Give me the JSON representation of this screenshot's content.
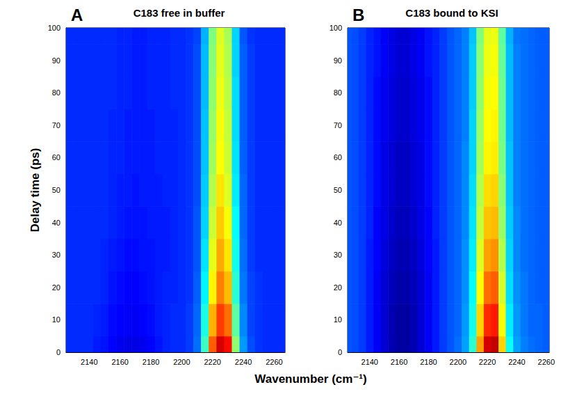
{
  "chart_data": [
    {
      "type": "heatmap",
      "title": "C183 free in buffer",
      "annotation": "A",
      "x_label": "Wavenumber (cm⁻¹)",
      "y_label": "Delay time (ps)",
      "xlim": [
        2125,
        2267
      ],
      "xticks": [
        2140,
        2160,
        2180,
        2200,
        2220,
        2240,
        2260
      ],
      "ylim": [
        0,
        100
      ],
      "yticks": [
        0,
        10,
        20,
        30,
        40,
        50,
        60,
        70,
        80,
        90,
        100
      ],
      "zlim": [
        -0.2,
        1
      ],
      "cells": {
        "x": [
          2125,
          2130,
          2135,
          2140,
          2145,
          2150,
          2155,
          2160,
          2165,
          2170,
          2175,
          2180,
          2185,
          2190,
          2195,
          2200,
          2205,
          2210,
          2215,
          2220,
          2225,
          2230,
          2235,
          2240,
          2245,
          2250,
          2255,
          2260,
          2265
        ],
        "y": [
          0,
          10,
          20,
          30,
          40,
          50,
          60,
          70,
          80,
          90,
          100
        ],
        "z": [
          [
            0,
            0,
            0,
            0,
            -0.02,
            -0.03,
            -0.05,
            -0.07,
            -0.08,
            -0.08,
            -0.07,
            -0.05,
            -0.03,
            -0.01,
            0,
            0,
            0.02,
            0.08,
            0.32,
            0.74,
            0.9,
            0.84,
            0.42,
            0.13,
            0.04,
            0.01,
            0,
            0,
            0
          ],
          [
            0,
            0,
            0,
            0,
            -0.01,
            -0.02,
            -0.04,
            -0.05,
            -0.06,
            -0.06,
            -0.05,
            -0.04,
            -0.02,
            -0.01,
            0,
            0,
            0.02,
            0.07,
            0.28,
            0.64,
            0.78,
            0.72,
            0.36,
            0.11,
            0.03,
            0.01,
            0,
            0,
            0
          ],
          [
            0,
            0,
            0,
            0,
            0,
            -0.01,
            -0.03,
            -0.04,
            -0.05,
            -0.05,
            -0.04,
            -0.03,
            -0.02,
            -0.01,
            -0.01,
            0,
            0.01,
            0.06,
            0.24,
            0.56,
            0.7,
            0.63,
            0.3,
            0.09,
            0.03,
            0.01,
            0,
            0,
            0
          ],
          [
            0,
            0,
            0,
            0,
            0,
            -0.01,
            -0.02,
            -0.03,
            -0.04,
            -0.04,
            -0.03,
            -0.03,
            -0.02,
            -0.02,
            -0.01,
            0,
            0.01,
            0.05,
            0.22,
            0.52,
            0.65,
            0.58,
            0.27,
            0.08,
            0.02,
            0,
            0,
            0,
            0
          ],
          [
            0,
            0,
            0,
            0,
            0,
            0,
            -0.01,
            -0.02,
            -0.03,
            -0.03,
            -0.03,
            -0.02,
            -0.02,
            -0.02,
            -0.01,
            0,
            0.01,
            0.05,
            0.2,
            0.49,
            0.61,
            0.54,
            0.25,
            0.07,
            0.02,
            0,
            0,
            0,
            0
          ],
          [
            0,
            0,
            0,
            0,
            0,
            0,
            -0.01,
            -0.02,
            -0.02,
            -0.03,
            -0.02,
            -0.02,
            -0.02,
            -0.01,
            -0.01,
            0,
            0.01,
            0.04,
            0.19,
            0.46,
            0.58,
            0.51,
            0.23,
            0.07,
            0.02,
            0,
            0,
            0,
            0
          ],
          [
            0,
            0,
            0,
            0,
            0,
            0,
            -0.01,
            -0.01,
            -0.02,
            -0.02,
            -0.02,
            -0.02,
            -0.01,
            -0.01,
            -0.01,
            0,
            0.01,
            0.04,
            0.18,
            0.44,
            0.55,
            0.49,
            0.22,
            0.06,
            0.02,
            0,
            0,
            0,
            0
          ],
          [
            0,
            0,
            0,
            0,
            0,
            0,
            -0.01,
            -0.01,
            -0.02,
            -0.02,
            -0.02,
            -0.02,
            -0.01,
            -0.01,
            -0.01,
            0,
            0.01,
            0.04,
            0.18,
            0.43,
            0.54,
            0.48,
            0.21,
            0.06,
            0.02,
            0,
            0,
            0,
            0
          ],
          [
            0,
            0,
            0,
            0,
            0,
            0,
            0,
            -0.01,
            -0.01,
            -0.02,
            -0.02,
            -0.01,
            -0.01,
            -0.01,
            0,
            0,
            0.01,
            0.04,
            0.17,
            0.42,
            0.53,
            0.47,
            0.21,
            0.06,
            0.02,
            0,
            0,
            0,
            0
          ],
          [
            0,
            0,
            0,
            0,
            0,
            0,
            0,
            -0.01,
            -0.01,
            -0.02,
            -0.02,
            -0.01,
            -0.01,
            -0.01,
            0,
            0,
            0.01,
            0.04,
            0.17,
            0.41,
            0.52,
            0.46,
            0.2,
            0.06,
            0.02,
            0,
            0,
            0,
            0
          ],
          [
            0,
            0,
            0,
            0,
            0,
            0,
            0,
            -0.01,
            -0.01,
            -0.02,
            -0.02,
            -0.01,
            -0.01,
            -0.01,
            0,
            0,
            0.01,
            0.03,
            0.16,
            0.4,
            0.51,
            0.45,
            0.2,
            0.05,
            0.01,
            0,
            0,
            0,
            0
          ]
        ]
      }
    },
    {
      "type": "heatmap",
      "title": "C183 bound to KSI",
      "annotation": "B",
      "xlim": [
        2125,
        2262
      ],
      "xticks": [
        2140,
        2160,
        2180,
        2200,
        2220,
        2240,
        2260
      ],
      "ylim": [
        0,
        100
      ],
      "yticks": [
        0,
        10,
        20,
        30,
        40,
        50,
        60,
        70,
        80,
        90,
        100
      ],
      "zlim": [
        -0.2,
        1
      ],
      "cells": {
        "x": [
          2125,
          2130,
          2135,
          2140,
          2145,
          2150,
          2155,
          2160,
          2165,
          2170,
          2175,
          2180,
          2185,
          2190,
          2195,
          2200,
          2205,
          2210,
          2215,
          2220,
          2225,
          2230,
          2235,
          2240,
          2245,
          2250,
          2255,
          2260,
          2265
        ],
        "y": [
          0,
          10,
          20,
          30,
          40,
          50,
          60,
          70,
          80,
          90,
          100
        ],
        "z": [
          [
            0.05,
            0.04,
            0.02,
            -0.02,
            -0.06,
            -0.1,
            -0.14,
            -0.16,
            -0.16,
            -0.14,
            -0.1,
            -0.06,
            -0.02,
            0.02,
            0.05,
            0.08,
            0.14,
            0.3,
            0.66,
            0.9,
            0.92,
            0.6,
            0.26,
            0.14,
            0.1,
            0.08,
            0.07,
            0.06,
            0.06
          ],
          [
            0.05,
            0.04,
            0.02,
            -0.02,
            -0.06,
            -0.1,
            -0.14,
            -0.16,
            -0.16,
            -0.14,
            -0.1,
            -0.06,
            -0.02,
            0.02,
            0.05,
            0.07,
            0.13,
            0.27,
            0.6,
            0.8,
            0.82,
            0.54,
            0.23,
            0.13,
            0.09,
            0.07,
            0.07,
            0.06,
            0.06
          ],
          [
            0.05,
            0.04,
            0.02,
            -0.02,
            -0.06,
            -0.1,
            -0.13,
            -0.15,
            -0.15,
            -0.13,
            -0.1,
            -0.06,
            -0.02,
            0.02,
            0.05,
            0.07,
            0.12,
            0.25,
            0.55,
            0.72,
            0.74,
            0.5,
            0.21,
            0.12,
            0.09,
            0.07,
            0.06,
            0.06,
            0.06
          ],
          [
            0.05,
            0.04,
            0.02,
            -0.02,
            -0.05,
            -0.09,
            -0.12,
            -0.14,
            -0.14,
            -0.12,
            -0.09,
            -0.05,
            -0.02,
            0.02,
            0.05,
            0.07,
            0.12,
            0.23,
            0.51,
            0.66,
            0.68,
            0.46,
            0.2,
            0.11,
            0.08,
            0.07,
            0.06,
            0.06,
            0.06
          ],
          [
            0.05,
            0.04,
            0.02,
            -0.01,
            -0.05,
            -0.08,
            -0.11,
            -0.13,
            -0.13,
            -0.11,
            -0.08,
            -0.05,
            -0.01,
            0.02,
            0.05,
            0.07,
            0.11,
            0.22,
            0.48,
            0.62,
            0.63,
            0.43,
            0.19,
            0.11,
            0.08,
            0.07,
            0.06,
            0.06,
            0.06
          ],
          [
            0.05,
            0.04,
            0.02,
            -0.01,
            -0.04,
            -0.08,
            -0.1,
            -0.12,
            -0.12,
            -0.1,
            -0.08,
            -0.04,
            -0.01,
            0.02,
            0.05,
            0.07,
            0.11,
            0.21,
            0.46,
            0.59,
            0.6,
            0.41,
            0.18,
            0.1,
            0.08,
            0.07,
            0.06,
            0.06,
            0.06
          ],
          [
            0.05,
            0.04,
            0.02,
            -0.01,
            -0.04,
            -0.08,
            -0.1,
            -0.12,
            -0.12,
            -0.1,
            -0.08,
            -0.04,
            -0.01,
            0.02,
            0.05,
            0.07,
            0.11,
            0.2,
            0.44,
            0.56,
            0.57,
            0.39,
            0.18,
            0.1,
            0.08,
            0.07,
            0.06,
            0.06,
            0.06
          ],
          [
            0.05,
            0.04,
            0.02,
            -0.01,
            -0.04,
            -0.07,
            -0.09,
            -0.11,
            -0.11,
            -0.09,
            -0.07,
            -0.04,
            -0.01,
            0.02,
            0.05,
            0.07,
            0.1,
            0.2,
            0.43,
            0.55,
            0.56,
            0.38,
            0.17,
            0.1,
            0.08,
            0.07,
            0.06,
            0.06,
            0.06
          ],
          [
            0.05,
            0.04,
            0.02,
            -0.01,
            -0.04,
            -0.07,
            -0.09,
            -0.11,
            -0.11,
            -0.09,
            -0.07,
            -0.04,
            -0.01,
            0.02,
            0.05,
            0.07,
            0.1,
            0.19,
            0.42,
            0.54,
            0.55,
            0.38,
            0.17,
            0.1,
            0.08,
            0.07,
            0.06,
            0.06,
            0.06
          ],
          [
            0.05,
            0.04,
            0.02,
            -0.01,
            -0.03,
            -0.06,
            -0.08,
            -0.1,
            -0.1,
            -0.08,
            -0.06,
            -0.03,
            -0.01,
            0.02,
            0.05,
            0.07,
            0.1,
            0.19,
            0.41,
            0.53,
            0.54,
            0.37,
            0.17,
            0.1,
            0.08,
            0.07,
            0.06,
            0.06,
            0.06
          ],
          [
            0.05,
            0.04,
            0.02,
            -0.01,
            -0.03,
            -0.06,
            -0.08,
            -0.1,
            -0.1,
            -0.08,
            -0.06,
            -0.03,
            -0.01,
            0.02,
            0.05,
            0.07,
            0.1,
            0.18,
            0.4,
            0.52,
            0.53,
            0.36,
            0.16,
            0.09,
            0.08,
            0.07,
            0.06,
            0.06,
            0.06
          ]
        ]
      }
    }
  ]
}
